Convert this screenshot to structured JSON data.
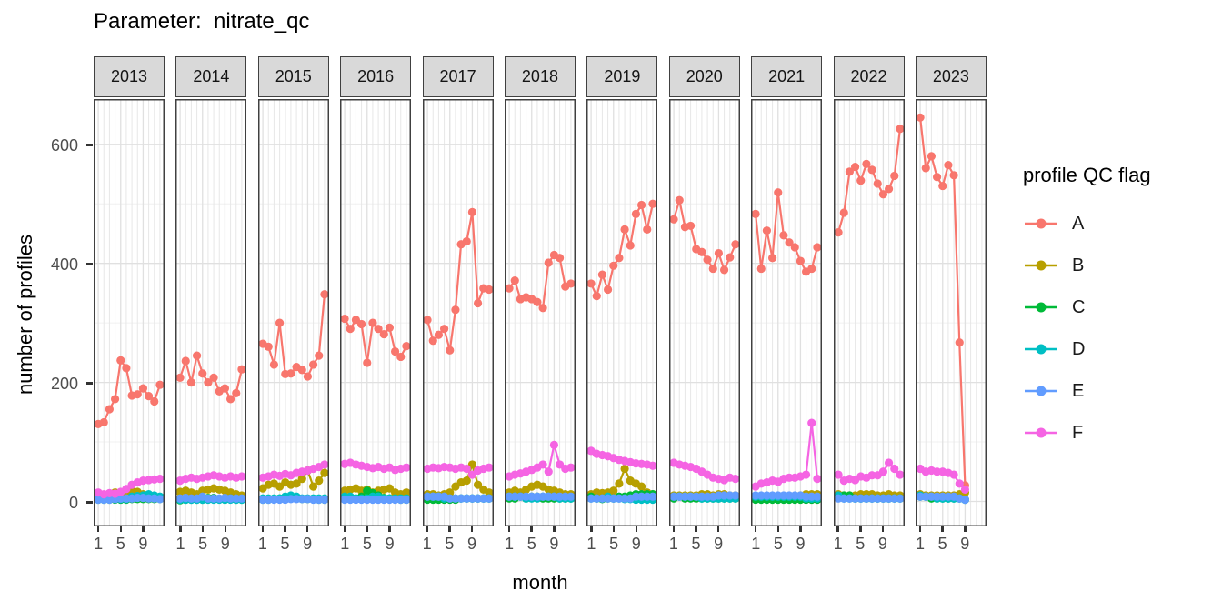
{
  "chart_data": {
    "type": "line",
    "title": "Parameter:  nitrate_qc",
    "xlabel": "month",
    "ylabel": "number of profiles",
    "legend_title": "profile QC flag",
    "facet_variable": "year",
    "x_breaks": [
      1,
      5,
      9
    ],
    "y_breaks": [
      0,
      200,
      400,
      600
    ],
    "y_minor_breaks": [
      100,
      300,
      500
    ],
    "x_months_full": [
      1,
      2,
      3,
      4,
      5,
      6,
      7,
      8,
      9,
      10,
      11,
      12
    ],
    "ylim_display": [
      -42,
      676
    ],
    "grid": "on",
    "legend_position": "right",
    "series_names": [
      "A",
      "B",
      "C",
      "D",
      "E",
      "F"
    ],
    "series_colors": {
      "A": "#F8766D",
      "B": "#B79F00",
      "C": "#00BA38",
      "D": "#00BFC4",
      "E": "#619CFF",
      "F": "#F564E3"
    },
    "facets": [
      {
        "year": "2013",
        "months": [
          1,
          2,
          3,
          4,
          5,
          6,
          7,
          8,
          9,
          10,
          11,
          12
        ],
        "values": {
          "A": [
            130,
            133,
            155,
            172,
            237,
            224,
            178,
            180,
            190,
            177,
            168,
            196
          ],
          "B": [
            8,
            5,
            12,
            15,
            12,
            10,
            18,
            16,
            12,
            10,
            8,
            6
          ],
          "C": [
            3,
            3,
            3,
            3,
            3,
            3,
            4,
            4,
            4,
            4,
            4,
            4
          ],
          "D": [
            5,
            5,
            4,
            4,
            4,
            4,
            8,
            9,
            10,
            12,
            10,
            8
          ],
          "E": [
            3,
            3,
            3,
            4,
            5,
            5,
            5,
            6,
            6,
            5,
            5,
            4
          ],
          "F": [
            15,
            12,
            14,
            13,
            16,
            21,
            28,
            32,
            35,
            36,
            37,
            38
          ]
        }
      },
      {
        "year": "2014",
        "months": [
          1,
          2,
          3,
          4,
          5,
          6,
          7,
          8,
          9,
          10,
          11,
          12
        ],
        "values": {
          "A": [
            208,
            236,
            200,
            245,
            215,
            200,
            208,
            185,
            190,
            172,
            182,
            222
          ],
          "B": [
            16,
            18,
            15,
            12,
            18,
            20,
            22,
            20,
            18,
            15,
            12,
            10
          ],
          "C": [
            2,
            3,
            3,
            3,
            3,
            6,
            6,
            4,
            3,
            5,
            3,
            3
          ],
          "D": [
            3,
            3,
            3,
            3,
            3,
            3,
            3,
            3,
            3,
            3,
            3,
            3
          ],
          "E": [
            5,
            6,
            5,
            5,
            8,
            5,
            5,
            5,
            6,
            5,
            5,
            5
          ],
          "F": [
            35,
            38,
            40,
            38,
            40,
            42,
            44,
            42,
            40,
            42,
            40,
            42
          ]
        }
      },
      {
        "year": "2015",
        "months": [
          1,
          2,
          3,
          4,
          5,
          6,
          7,
          8,
          9,
          10,
          11,
          12
        ],
        "values": {
          "A": [
            265,
            260,
            230,
            300,
            214,
            215,
            226,
            221,
            210,
            230,
            245,
            348
          ],
          "B": [
            22,
            28,
            30,
            25,
            32,
            28,
            30,
            38,
            52,
            25,
            35,
            48
          ],
          "C": [
            3,
            3,
            4,
            5,
            5,
            5,
            5,
            4,
            4,
            4,
            3,
            3
          ],
          "D": [
            5,
            5,
            5,
            5,
            8,
            10,
            8,
            5,
            5,
            5,
            5,
            5
          ],
          "E": [
            3,
            3,
            3,
            3,
            3,
            4,
            4,
            4,
            4,
            3,
            3,
            3
          ],
          "F": [
            40,
            42,
            45,
            43,
            46,
            44,
            48,
            50,
            52,
            55,
            58,
            62
          ]
        }
      },
      {
        "year": "2016",
        "months": [
          1,
          2,
          3,
          4,
          5,
          6,
          7,
          8,
          9,
          10,
          11,
          12
        ],
        "values": {
          "A": [
            307,
            290,
            305,
            298,
            233,
            300,
            290,
            281,
            292,
            252,
            243,
            261
          ],
          "B": [
            18,
            20,
            22,
            18,
            20,
            15,
            18,
            20,
            22,
            15,
            12,
            15
          ],
          "C": [
            4,
            4,
            5,
            8,
            18,
            14,
            10,
            6,
            5,
            4,
            3,
            3
          ],
          "D": [
            8,
            8,
            5,
            5,
            5,
            8,
            8,
            5,
            5,
            5,
            5,
            5
          ],
          "E": [
            3,
            3,
            3,
            3,
            3,
            3,
            3,
            3,
            3,
            3,
            3,
            3
          ],
          "F": [
            63,
            65,
            62,
            60,
            58,
            56,
            58,
            55,
            57,
            53,
            55,
            57
          ]
        }
      },
      {
        "year": "2017",
        "months": [
          1,
          2,
          3,
          4,
          5,
          6,
          7,
          8,
          9,
          10,
          11,
          12
        ],
        "values": {
          "A": [
            305,
            270,
            280,
            290,
            254,
            322,
            432,
            437,
            486,
            333,
            358,
            356
          ],
          "B": [
            12,
            12,
            10,
            12,
            15,
            25,
            32,
            35,
            62,
            28,
            20,
            15
          ],
          "C": [
            3,
            3,
            3,
            3,
            3,
            3,
            5,
            5,
            5,
            5,
            5,
            5
          ],
          "D": [
            8,
            8,
            8,
            5,
            5,
            5,
            5,
            5,
            5,
            5,
            5,
            5
          ],
          "E": [
            8,
            8,
            8,
            8,
            5,
            5,
            5,
            5,
            5,
            5,
            5,
            5
          ],
          "F": [
            55,
            57,
            56,
            58,
            57,
            55,
            57,
            55,
            45,
            52,
            55,
            57
          ]
        }
      },
      {
        "year": "2018",
        "months": [
          1,
          2,
          3,
          4,
          5,
          6,
          7,
          8,
          9,
          10,
          11,
          12
        ],
        "values": {
          "A": [
            358,
            371,
            340,
            343,
            340,
            335,
            325,
            401,
            414,
            409,
            361,
            366
          ],
          "B": [
            15,
            18,
            15,
            20,
            25,
            28,
            25,
            20,
            18,
            15,
            12,
            12
          ],
          "C": [
            5,
            5,
            8,
            5,
            8,
            8,
            5,
            5,
            5,
            5,
            5,
            5
          ],
          "D": [
            8,
            8,
            8,
            5,
            5,
            5,
            8,
            8,
            8,
            5,
            5,
            5
          ],
          "E": [
            8,
            8,
            8,
            8,
            8,
            8,
            8,
            8,
            8,
            8,
            8,
            8
          ],
          "F": [
            42,
            45,
            47,
            50,
            53,
            57,
            62,
            50,
            95,
            62,
            55,
            57
          ]
        }
      },
      {
        "year": "2019",
        "months": [
          1,
          2,
          3,
          4,
          5,
          6,
          7,
          8,
          9,
          10,
          11,
          12
        ],
        "values": {
          "A": [
            366,
            345,
            381,
            356,
            396,
            409,
            457,
            430,
            483,
            498,
            457,
            500
          ],
          "B": [
            12,
            15,
            14,
            15,
            18,
            30,
            55,
            35,
            30,
            25,
            15,
            12
          ],
          "C": [
            8,
            5,
            4,
            5,
            5,
            8,
            8,
            10,
            12,
            12,
            12,
            12
          ],
          "D": [
            5,
            5,
            5,
            8,
            5,
            5,
            4,
            4,
            3,
            3,
            3,
            3
          ],
          "E": [
            5,
            5,
            5,
            5,
            5,
            5,
            5,
            5,
            8,
            8,
            8,
            8
          ],
          "F": [
            85,
            80,
            78,
            76,
            73,
            70,
            68,
            66,
            64,
            63,
            62,
            60
          ]
        }
      },
      {
        "year": "2020",
        "months": [
          1,
          2,
          3,
          4,
          5,
          6,
          7,
          8,
          9,
          10,
          11,
          12
        ],
        "values": {
          "A": [
            474,
            506,
            461,
            463,
            424,
            419,
            406,
            391,
            417,
            389,
            410,
            432
          ],
          "B": [
            10,
            10,
            10,
            10,
            10,
            12,
            12,
            10,
            12,
            12,
            10,
            10
          ],
          "C": [
            5,
            8,
            5,
            5,
            5,
            5,
            5,
            5,
            5,
            5,
            5,
            5
          ],
          "D": [
            8,
            8,
            8,
            8,
            8,
            5,
            5,
            5,
            5,
            5,
            5,
            5
          ],
          "E": [
            8,
            8,
            8,
            8,
            8,
            8,
            8,
            8,
            10,
            10,
            10,
            10
          ],
          "F": [
            65,
            62,
            60,
            58,
            55,
            50,
            45,
            40,
            38,
            36,
            40,
            38
          ]
        }
      },
      {
        "year": "2021",
        "months": [
          1,
          2,
          3,
          4,
          5,
          6,
          7,
          8,
          9,
          10,
          11,
          12
        ],
        "values": {
          "A": [
            483,
            391,
            455,
            409,
            519,
            447,
            435,
            427,
            404,
            386,
            391,
            427
          ],
          "B": [
            5,
            5,
            5,
            5,
            5,
            5,
            5,
            8,
            10,
            12,
            12,
            12
          ],
          "C": [
            3,
            3,
            3,
            3,
            3,
            3,
            3,
            3,
            3,
            3,
            3,
            3
          ],
          "D": [
            8,
            8,
            8,
            8,
            8,
            8,
            8,
            8,
            8,
            5,
            5,
            5
          ],
          "E": [
            10,
            10,
            10,
            10,
            10,
            10,
            10,
            10,
            10,
            8,
            8,
            8
          ],
          "F": [
            25,
            30,
            32,
            35,
            33,
            38,
            40,
            40,
            42,
            45,
            132,
            38
          ]
        }
      },
      {
        "year": "2022",
        "months": [
          1,
          2,
          3,
          4,
          5,
          6,
          7,
          8,
          9,
          10,
          11,
          12
        ],
        "values": {
          "A": [
            452,
            485,
            554,
            562,
            539,
            567,
            557,
            534,
            516,
            525,
            547,
            626
          ],
          "B": [
            12,
            10,
            10,
            10,
            12,
            12,
            12,
            10,
            10,
            12,
            10,
            10
          ],
          "C": [
            8,
            10,
            10,
            5,
            5,
            5,
            5,
            5,
            5,
            5,
            5,
            5
          ],
          "D": [
            10,
            5,
            5,
            5,
            5,
            5,
            5,
            5,
            5,
            5,
            5,
            5
          ],
          "E": [
            5,
            5,
            5,
            5,
            5,
            5,
            5,
            5,
            5,
            5,
            5,
            5
          ],
          "F": [
            45,
            35,
            38,
            36,
            42,
            40,
            44,
            44,
            50,
            65,
            55,
            45
          ]
        }
      },
      {
        "year": "2023",
        "months": [
          1,
          2,
          3,
          4,
          5,
          6,
          7,
          8,
          9
        ],
        "values": {
          "A": [
            645,
            560,
            580,
            545,
            530,
            565,
            548,
            267,
            27
          ],
          "B": [
            12,
            10,
            10,
            10,
            10,
            10,
            10,
            12,
            15
          ],
          "C": [
            8,
            8,
            5,
            5,
            5,
            5,
            5,
            5,
            3
          ],
          "D": [
            10,
            8,
            8,
            5,
            5,
            5,
            5,
            5,
            3
          ],
          "E": [
            8,
            8,
            8,
            8,
            8,
            8,
            8,
            5,
            3
          ],
          "F": [
            55,
            50,
            52,
            50,
            50,
            48,
            45,
            30,
            20
          ]
        }
      }
    ]
  },
  "style_colors": {
    "strip_fill": "#d9d9d9",
    "panel_border": "#404040",
    "grid_major": "#e0e0e0",
    "grid_minor": "#f0f0f0",
    "grid_vertical": "#e7e7e7",
    "axis_text": "#4d4d4d",
    "tick_mark": "#333333"
  }
}
